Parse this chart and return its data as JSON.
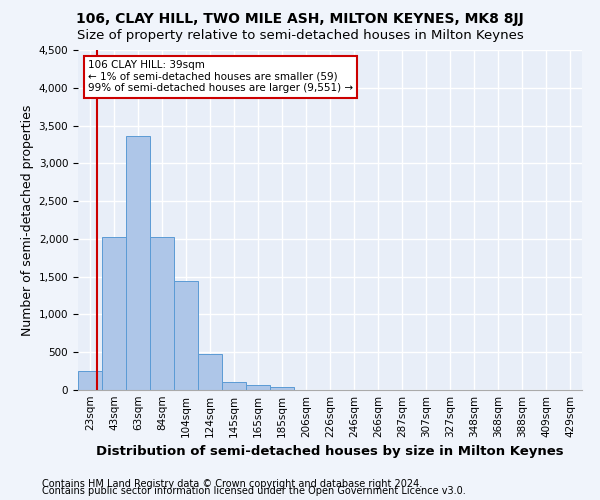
{
  "title": "106, CLAY HILL, TWO MILE ASH, MILTON KEYNES, MK8 8JJ",
  "subtitle": "Size of property relative to semi-detached houses in Milton Keynes",
  "xlabel": "Distribution of semi-detached houses by size in Milton Keynes",
  "ylabel": "Number of semi-detached properties",
  "footnote1": "Contains HM Land Registry data © Crown copyright and database right 2024.",
  "footnote2": "Contains public sector information licensed under the Open Government Licence v3.0.",
  "bar_labels": [
    "23sqm",
    "43sqm",
    "63sqm",
    "84sqm",
    "104sqm",
    "124sqm",
    "145sqm",
    "165sqm",
    "185sqm",
    "206sqm",
    "226sqm",
    "246sqm",
    "266sqm",
    "287sqm",
    "307sqm",
    "327sqm",
    "348sqm",
    "368sqm",
    "388sqm",
    "409sqm",
    "429sqm"
  ],
  "bar_values": [
    250,
    2030,
    3360,
    2020,
    1440,
    480,
    100,
    60,
    45,
    0,
    0,
    0,
    0,
    0,
    0,
    0,
    0,
    0,
    0,
    0,
    0
  ],
  "bar_color": "#aec6e8",
  "bar_edge_color": "#5b9bd5",
  "ylim": [
    0,
    4500
  ],
  "yticks": [
    0,
    500,
    1000,
    1500,
    2000,
    2500,
    3000,
    3500,
    4000,
    4500
  ],
  "annotation_line1": "106 CLAY HILL: 39sqm",
  "annotation_line2": "← 1% of semi-detached houses are smaller (59)",
  "annotation_line3": "99% of semi-detached houses are larger (9,551) →",
  "annotation_box_color": "#ffffff",
  "annotation_border_color": "#cc0000",
  "vline_color": "#cc0000",
  "background_color": "#f0f4fb",
  "plot_bg_color": "#e8eef8",
  "grid_color": "#ffffff",
  "title_fontsize": 10,
  "subtitle_fontsize": 9.5,
  "axis_label_fontsize": 9,
  "tick_fontsize": 7.5,
  "footnote_fontsize": 7
}
